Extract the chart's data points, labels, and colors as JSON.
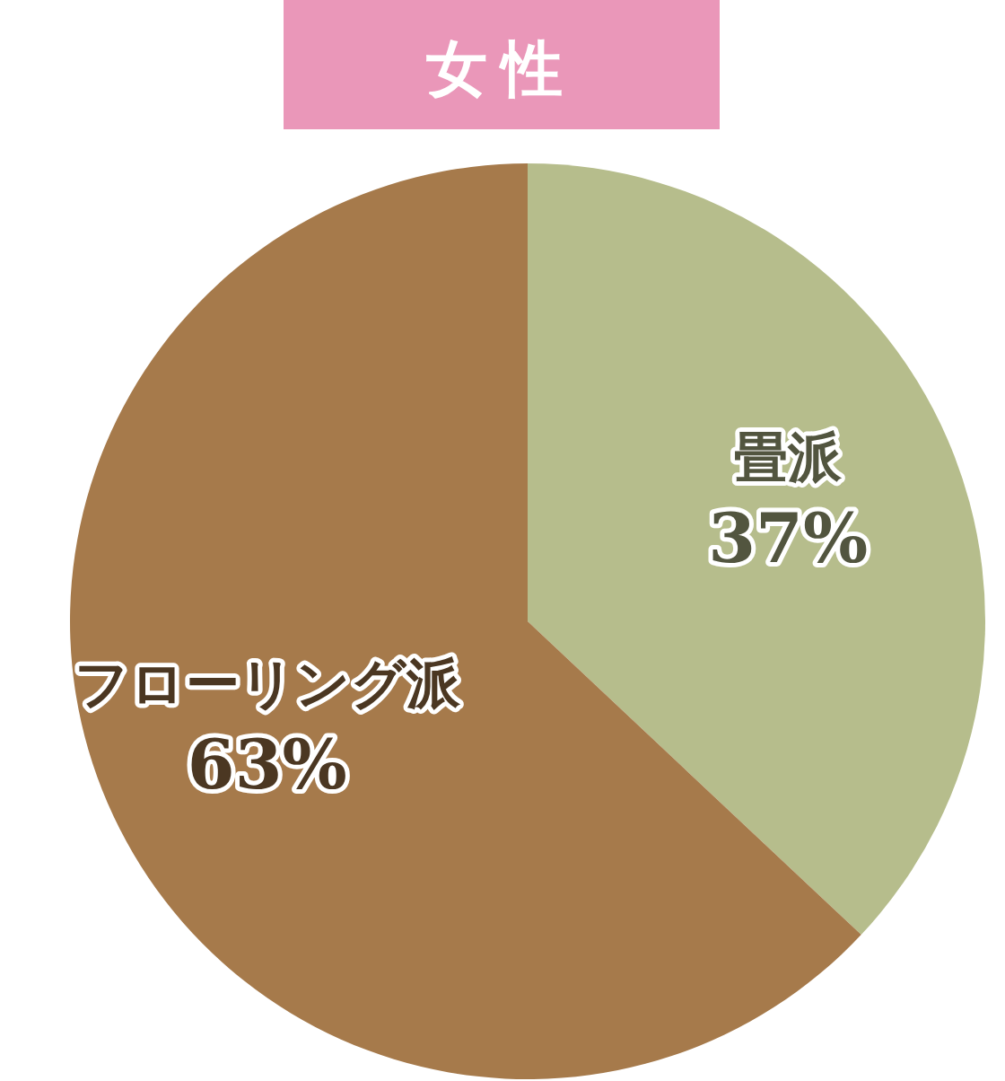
{
  "chart_data": {
    "type": "pie",
    "title": "女性",
    "categories": [
      "畳派",
      "フローリング派"
    ],
    "values": [
      37,
      63
    ],
    "value_labels": [
      "37%",
      "63%"
    ],
    "colors": [
      "#b6bd8c",
      "#a67a4b"
    ]
  }
}
